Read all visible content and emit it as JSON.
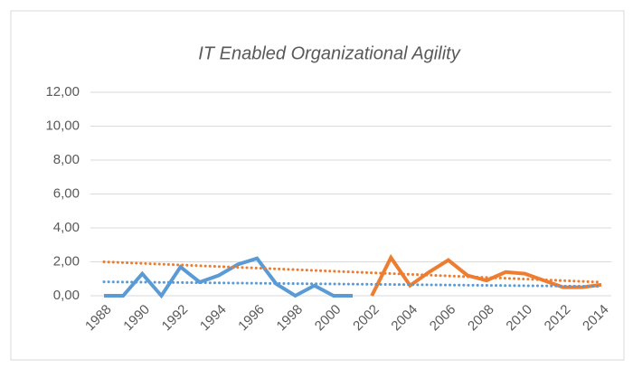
{
  "chart_data": {
    "type": "line",
    "title": "IT Enabled Organizational Agility",
    "x": [
      1988,
      1989,
      1990,
      1991,
      1992,
      1993,
      1994,
      1995,
      1996,
      1997,
      1998,
      1999,
      2000,
      2001,
      2002,
      2003,
      2004,
      2005,
      2006,
      2007,
      2008,
      2009,
      2010,
      2011,
      2012,
      2013,
      2014
    ],
    "series": [
      {
        "color": "#5b9bd5",
        "values": [
          0,
          0,
          1.3,
          0,
          1.7,
          0.8,
          1.2,
          1.85,
          2.2,
          0.7,
          0,
          0.6,
          0,
          0,
          null,
          null,
          null,
          null,
          null,
          null,
          null,
          null,
          null,
          null,
          null,
          null,
          null
        ]
      },
      {
        "color": "#ed7d31",
        "values": [
          null,
          null,
          null,
          null,
          null,
          null,
          null,
          null,
          null,
          null,
          null,
          null,
          null,
          null,
          0,
          2.25,
          0.6,
          1.4,
          2.1,
          1.2,
          0.9,
          1.4,
          1.3,
          0.9,
          0.5,
          0.5,
          0.65
        ]
      }
    ],
    "trendlines": [
      {
        "color": "#5b9bd5",
        "x": [
          1988,
          2014
        ],
        "values": [
          0.82,
          0.55
        ]
      },
      {
        "color": "#ed7d31",
        "x": [
          1988,
          2014
        ],
        "values": [
          2.0,
          0.8
        ]
      }
    ],
    "xlim": [
      1988,
      2014
    ],
    "xticks": [
      1988,
      1990,
      1992,
      1994,
      1996,
      1998,
      2000,
      2002,
      2004,
      2006,
      2008,
      2010,
      2012,
      2014
    ],
    "ylim": [
      0,
      12
    ],
    "yticks": [
      {
        "value": 0,
        "label": "0,00"
      },
      {
        "value": 2,
        "label": "2,00"
      },
      {
        "value": 4,
        "label": "4,00"
      },
      {
        "value": 6,
        "label": "6,00"
      },
      {
        "value": 8,
        "label": "8,00"
      },
      {
        "value": 10,
        "label": "10,00"
      },
      {
        "value": 12,
        "label": "12,00"
      }
    ],
    "grid": true
  }
}
